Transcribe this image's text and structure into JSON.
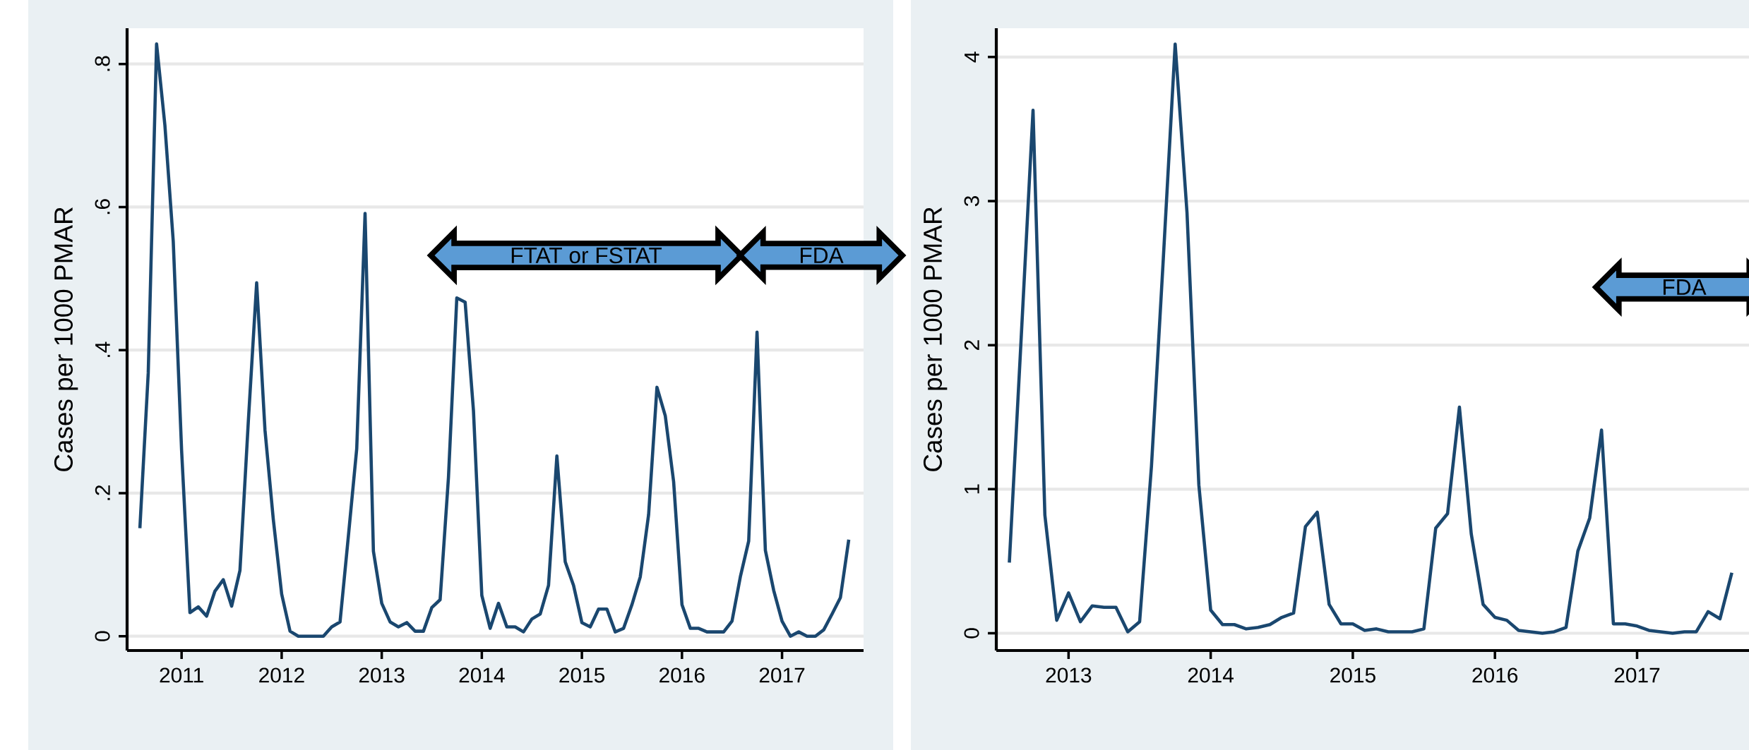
{
  "chart_data": [
    {
      "type": "line",
      "ylabel": "Cases per 1000 PMAR",
      "color": "#1a476f",
      "grid": "y",
      "x": [
        "2010-08",
        "2010-09",
        "2010-10",
        "2010-11",
        "2010-12",
        "2011-01",
        "2011-02",
        "2011-03",
        "2011-04",
        "2011-05",
        "2011-06",
        "2011-07",
        "2011-08",
        "2011-09",
        "2011-10",
        "2011-11",
        "2011-12",
        "2012-01",
        "2012-02",
        "2012-03",
        "2012-04",
        "2012-05",
        "2012-06",
        "2012-07",
        "2012-08",
        "2012-09",
        "2012-10",
        "2012-11",
        "2012-12",
        "2013-01",
        "2013-02",
        "2013-03",
        "2013-04",
        "2013-05",
        "2013-06",
        "2013-07",
        "2013-08",
        "2013-09",
        "2013-10",
        "2013-11",
        "2013-12",
        "2014-01",
        "2014-02",
        "2014-03",
        "2014-04",
        "2014-05",
        "2014-06",
        "2014-07",
        "2014-08",
        "2014-09",
        "2014-10",
        "2014-11",
        "2014-12",
        "2015-01",
        "2015-02",
        "2015-03",
        "2015-04",
        "2015-05",
        "2015-06",
        "2015-07",
        "2015-08",
        "2015-09",
        "2015-10",
        "2015-11",
        "2015-12",
        "2016-01",
        "2016-02",
        "2016-03",
        "2016-04",
        "2016-05",
        "2016-06",
        "2016-07",
        "2016-08",
        "2016-09",
        "2016-10",
        "2016-11",
        "2016-12",
        "2017-01",
        "2017-02",
        "2017-03",
        "2017-04",
        "2017-05",
        "2017-06",
        "2017-07",
        "2017-08",
        "2017-09"
      ],
      "values": [
        0.151,
        0.368,
        0.828,
        0.714,
        0.552,
        0.26,
        0.033,
        0.041,
        0.028,
        0.063,
        0.079,
        0.042,
        0.092,
        0.3,
        0.494,
        0.288,
        0.163,
        0.059,
        0.007,
        0,
        0,
        0,
        0,
        0.013,
        0.02,
        0.14,
        0.262,
        0.591,
        0.119,
        0.046,
        0.02,
        0.013,
        0.019,
        0.007,
        0.007,
        0.04,
        0.051,
        0.222,
        0.473,
        0.467,
        0.315,
        0.057,
        0.011,
        0.046,
        0.013,
        0.013,
        0.006,
        0.024,
        0.031,
        0.071,
        0.252,
        0.104,
        0.071,
        0.019,
        0.013,
        0.038,
        0.038,
        0.006,
        0.011,
        0.044,
        0.083,
        0.17,
        0.348,
        0.308,
        0.216,
        0.044,
        0.011,
        0.011,
        0.006,
        0.006,
        0.006,
        0.021,
        0.083,
        0.133,
        0.425,
        0.12,
        0.064,
        0.021,
        0,
        0.006,
        0,
        0,
        0.009,
        0.031,
        0.054,
        0.135
      ],
      "xlim": [
        "2010-06-15",
        "2017-10-25"
      ],
      "ylim": [
        -0.02,
        0.85
      ],
      "xticks": [
        "2011",
        "2012",
        "2013",
        "2014",
        "2015",
        "2016",
        "2017"
      ],
      "yticks": [
        0,
        {
          "value": 0.2,
          "label": ".2"
        },
        {
          "value": 0.4,
          "label": ".4"
        },
        {
          "value": 0.6,
          "label": ".6"
        },
        {
          "value": 0.8,
          "label": ".8"
        }
      ],
      "annotations": [
        "FTAT or FSTAT",
        "FDA"
      ]
    },
    {
      "type": "line",
      "ylabel": "Cases per 1000 PMAR",
      "color": "#1a476f",
      "grid": "y",
      "x": [
        "2012-08",
        "2012-09",
        "2012-10",
        "2012-11",
        "2012-12",
        "2013-01",
        "2013-02",
        "2013-03",
        "2013-04",
        "2013-05",
        "2013-06",
        "2013-07",
        "2013-08",
        "2013-09",
        "2013-10",
        "2013-11",
        "2013-12",
        "2014-01",
        "2014-02",
        "2014-03",
        "2014-04",
        "2014-05",
        "2014-06",
        "2014-07",
        "2014-08",
        "2014-09",
        "2014-10",
        "2014-11",
        "2014-12",
        "2015-01",
        "2015-02",
        "2015-03",
        "2015-04",
        "2015-05",
        "2015-06",
        "2015-07",
        "2015-08",
        "2015-09",
        "2015-10",
        "2015-11",
        "2015-12",
        "2016-01",
        "2016-02",
        "2016-03",
        "2016-04",
        "2016-05",
        "2016-06",
        "2016-07",
        "2016-08",
        "2016-09",
        "2016-10",
        "2016-11",
        "2016-12",
        "2017-01",
        "2017-02",
        "2017-03",
        "2017-04",
        "2017-05",
        "2017-06",
        "2017-07",
        "2017-08",
        "2017-09"
      ],
      "values": [
        0.49,
        2.05,
        3.63,
        0.82,
        0.09,
        0.28,
        0.08,
        0.19,
        0.18,
        0.18,
        0.01,
        0.08,
        1.16,
        2.6,
        4.09,
        2.92,
        1.03,
        0.16,
        0.06,
        0.06,
        0.03,
        0.04,
        0.06,
        0.11,
        0.14,
        0.74,
        0.84,
        0.2,
        0.065,
        0.065,
        0.02,
        0.03,
        0.01,
        0.01,
        0.01,
        0.03,
        0.73,
        0.83,
        1.57,
        0.69,
        0.2,
        0.11,
        0.09,
        0.02,
        0.01,
        0,
        0.01,
        0.04,
        0.57,
        0.8,
        1.41,
        0.065,
        0.065,
        0.05,
        0.02,
        0.01,
        0,
        0.01,
        0.01,
        0.15,
        0.1,
        0.42
      ],
      "xlim": [
        "2012-06-28",
        "2017-10-15"
      ],
      "ylim": [
        -0.12,
        4.2
      ],
      "xticks": [
        "2013",
        "2014",
        "2015",
        "2016",
        "2017"
      ],
      "yticks": [
        0,
        1,
        2,
        3,
        4
      ],
      "annotations": [
        "FDA"
      ]
    }
  ]
}
